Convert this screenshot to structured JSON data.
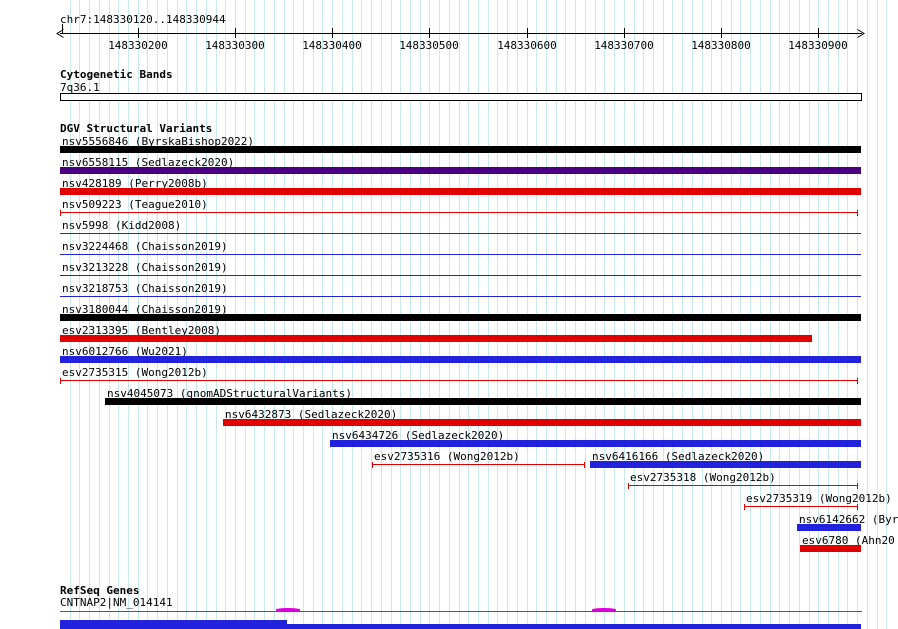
{
  "header": {
    "region": "chr7:148330120..148330944"
  },
  "sections": {
    "cytogenetic": {
      "title": "Cytogenetic Bands",
      "band_label": "7q36.1"
    },
    "dgv": {
      "title": "DGV Structural Variants"
    },
    "refseq": {
      "title": "RefSeq Genes",
      "gene_label": "CNTNAP2|NM_014141"
    }
  },
  "colors": {
    "black": "#000000",
    "red": "#e00000",
    "blue": "#2222dd",
    "purple": "#4b0082",
    "magenta": "#dd00dd",
    "grid": "#c8eaec"
  },
  "chart_data": {
    "type": "genomic-interval-tracks",
    "title": "chr7:148330120..148330944",
    "region": {
      "chrom": "chr7",
      "start": 148330120,
      "end": 148330944
    },
    "axis_ticks": [
      148330200,
      148330300,
      148330400,
      148330500,
      148330600,
      148330700,
      148330800,
      148330900
    ],
    "grid_step_bp": 10,
    "cytogenetic_band": {
      "name": "7q36.1",
      "start": 148330120,
      "end": 148330944
    },
    "variants": [
      {
        "row": 0,
        "label": "nsv5556846 (ByrskaBishop2022)",
        "color": "black",
        "glyph": "box",
        "start": 148330120,
        "end": 148330944
      },
      {
        "row": 1,
        "label": "nsv6558115 (Sedlazeck2020)",
        "color": "purple",
        "glyph": "box",
        "start": 148330120,
        "end": 148330944
      },
      {
        "row": 2,
        "label": "nsv428189 (Perry2008b)",
        "color": "red",
        "glyph": "box",
        "start": 148330120,
        "end": 148330944
      },
      {
        "row": 3,
        "label": "nsv509223 (Teague2010)",
        "color": "red",
        "glyph": "range",
        "start": 148330120,
        "end": 148330941
      },
      {
        "row": 4,
        "label": "nsv5998 (Kidd2008)",
        "color": "blue",
        "glyph": "line",
        "start": 148330120,
        "end": 148330944
      },
      {
        "row": 5,
        "label": "nsv3224468 (Chaisson2019)",
        "color": "blue",
        "glyph": "line",
        "start": 148330120,
        "end": 148330944
      },
      {
        "row": 6,
        "label": "nsv3213228 (Chaisson2019)",
        "color": "blue",
        "glyph": "line",
        "start": 148330120,
        "end": 148330944
      },
      {
        "row": 7,
        "label": "nsv3218753 (Chaisson2019)",
        "color": "blue",
        "glyph": "line",
        "start": 148330120,
        "end": 148330944
      },
      {
        "row": 8,
        "label": "nsv3180044 (Chaisson2019)",
        "color": "black",
        "glyph": "box",
        "start": 148330120,
        "end": 148330944
      },
      {
        "row": 9,
        "label": "esv2313395 (Bentley2008)",
        "color": "red",
        "glyph": "box",
        "start": 148330120,
        "end": 148330894
      },
      {
        "row": 10,
        "label": "nsv6012766 (Wu2021)",
        "color": "blue",
        "glyph": "box",
        "start": 148330120,
        "end": 148330944
      },
      {
        "row": 11,
        "label": "esv2735315 (Wong2012b)",
        "color": "red",
        "glyph": "range",
        "start": 148330120,
        "end": 148330941
      },
      {
        "row": 12,
        "label": "nsv4045073 (gnomADStructuralVariants)",
        "color": "black",
        "glyph": "box",
        "start": 148330166,
        "end": 148330944
      },
      {
        "row": 13,
        "label": "nsv6432873 (Sedlazeck2020)",
        "color": "red",
        "glyph": "box",
        "start": 148330288,
        "end": 148330944
      },
      {
        "row": 14,
        "label": "nsv6434726 (Sedlazeck2020)",
        "color": "blue",
        "glyph": "box",
        "start": 148330398,
        "end": 148330944
      },
      {
        "row": 15,
        "label": "esv2735316 (Wong2012b)",
        "color": "red",
        "glyph": "range",
        "start": 148330441,
        "end": 148330660
      },
      {
        "row": 15,
        "label": "nsv6416166 (Sedlazeck2020)",
        "color": "blue",
        "glyph": "box",
        "start": 148330665,
        "end": 148330944
      },
      {
        "row": 16,
        "label": "esv2735318 (Wong2012b)",
        "color": "red",
        "glyph": "range",
        "start": 148330704,
        "end": 148330941
      },
      {
        "row": 17,
        "label": "esv2735319 (Wong2012b)",
        "color": "red",
        "glyph": "range",
        "start": 148330824,
        "end": 148330941
      },
      {
        "row": 18,
        "label": "nsv6142662 (Byr",
        "color": "blue",
        "glyph": "box",
        "start": 148330878,
        "end": 148330944
      },
      {
        "row": 19,
        "label": "esv6780 (Ahn20",
        "color": "red",
        "glyph": "box",
        "start": 148330881,
        "end": 148330944
      }
    ],
    "gene": {
      "label": "CNTNAP2|NM_014141",
      "segments": [
        {
          "start": 148330120,
          "end": 148330354,
          "thick": true
        },
        {
          "start": 148330354,
          "end": 148330944,
          "thick": false
        }
      ]
    }
  }
}
